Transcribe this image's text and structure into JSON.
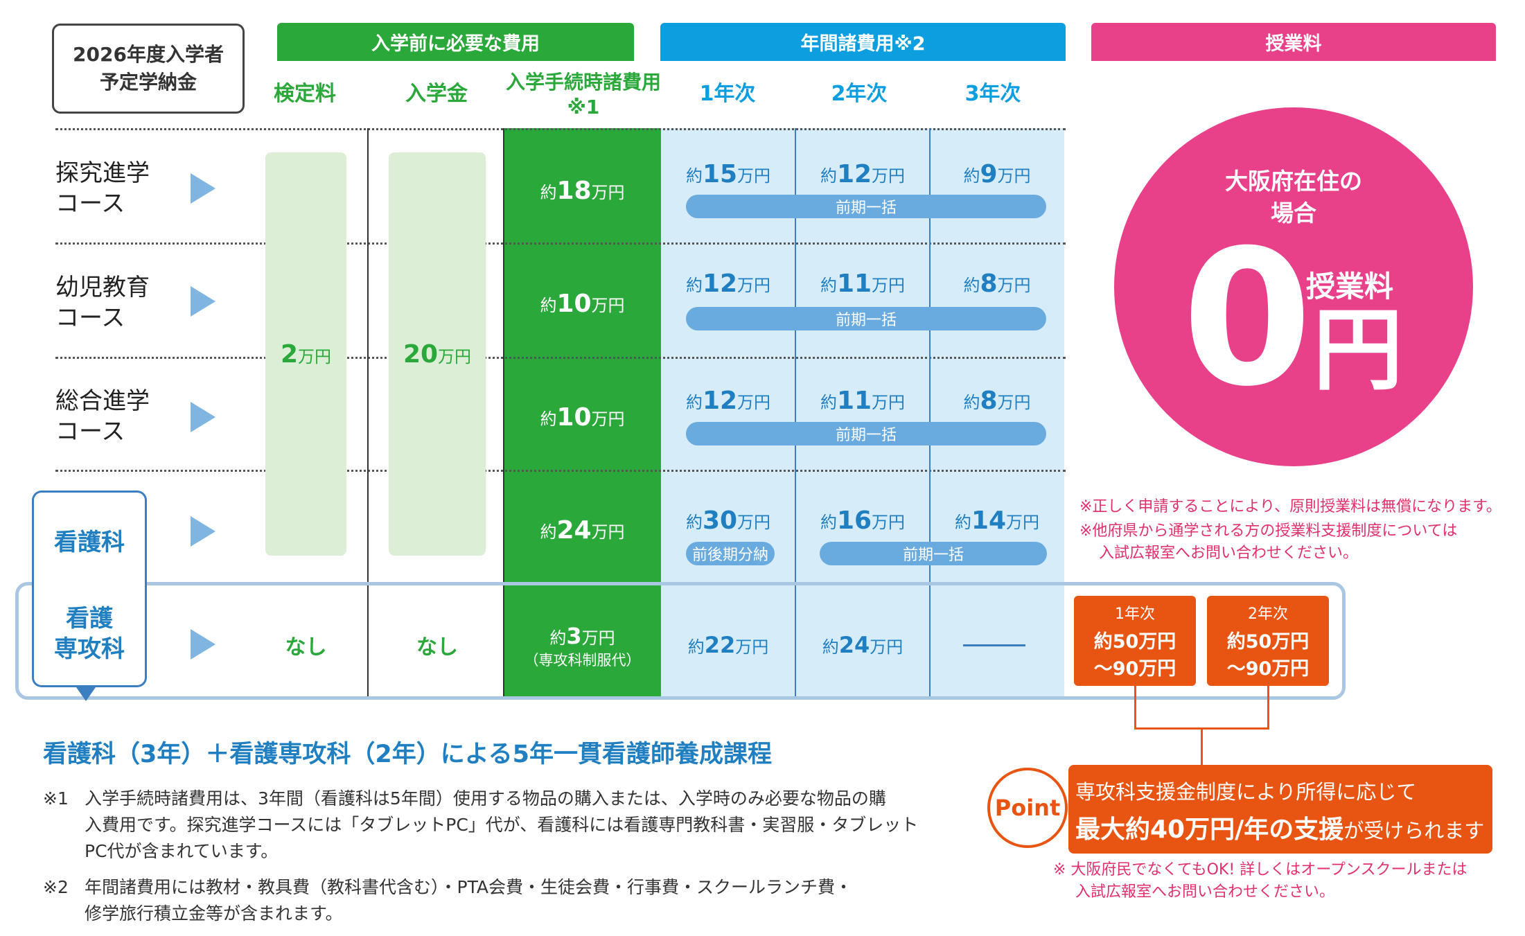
{
  "title_box": {
    "line1": "2026年度入学者",
    "line2": "予定学納金"
  },
  "headers": {
    "pre_entry": "入学前に必要な費用",
    "annual": "年間諸費用※2",
    "tuition": "授業料",
    "exam_fee": "検定料",
    "admission_fee": "入学金",
    "procedure_fee_1": "入学手続時諸費用",
    "procedure_fee_2": "※1",
    "year1": "1年次",
    "year2": "2年次",
    "year3": "3年次"
  },
  "approx": "約",
  "unit": "万円",
  "exam_fee_value": "2",
  "admission_fee_value": "20",
  "none_label": "なし",
  "dash": "——",
  "courses": [
    {
      "line1": "探究進学",
      "line2": "コース",
      "procedure": "18",
      "y1": "15",
      "y2": "12",
      "y3": "9",
      "pill": "前期一括"
    },
    {
      "line1": "幼児教育",
      "line2": "コース",
      "procedure": "10",
      "y1": "12",
      "y2": "11",
      "y3": "8",
      "pill": "前期一括"
    },
    {
      "line1": "総合進学",
      "line2": "コース",
      "procedure": "10",
      "y1": "12",
      "y2": "11",
      "y3": "8",
      "pill": "前期一括"
    },
    {
      "line1": "看護科",
      "procedure": "24",
      "y1": "30",
      "y2": "16",
      "y3": "14",
      "pill_y1": "前後期分納",
      "pill": "前期一括"
    }
  ],
  "senkou": {
    "line1": "看護",
    "line2": "専攻科",
    "procedure": "3",
    "procedure_note": "（専攻科制服代）",
    "y1": "22",
    "y2": "24"
  },
  "circle": {
    "line1": "大阪府在住の",
    "line2": "場合",
    "zero": "0",
    "label": "授業料",
    "yen": "円"
  },
  "tuition_notes": [
    "※正しく申請することにより、原則授業料は無償になります。",
    "※他府県から通学される方の授業料支援制度については",
    "入試広報室へお問い合わせください。"
  ],
  "senkou_tuition": [
    {
      "year": "1年次",
      "line1": "約50万円",
      "line2": "〜90万円"
    },
    {
      "year": "2年次",
      "line1": "約50万円",
      "line2": "〜90万円"
    }
  ],
  "point": {
    "badge": "Point",
    "line1": "専攻科支援金制度により所得に応じて",
    "line2_bold": "最大約40万円/年の支援",
    "line2_rest": "が受けられます",
    "note1": "※ 大阪府民でなくてもOK! 詳しくはオープンスクールまたは",
    "note2": "入試広報室へお問い合わせください。"
  },
  "program_title": "看護科（3年）＋看護専攻科（2年）による5年一貫看護師養成課程",
  "footnotes": {
    "n1_label": "※1",
    "n1_lines": [
      "入学手続時諸費用は、3年間（看護科は5年間）使用する物品の購入または、入学時のみ必要な物品の購",
      "入費用です。探究進学コースには「タブレットPC」代が、看護科には看護専門教科書・実習服・タブレット",
      "PC代が含まれています。"
    ],
    "n2_label": "※2",
    "n2_lines": [
      "年間諸費用には教材・教具費（教科書代含む）・PTA会費・生徒会費・行事費・スクールランチ費・",
      "修学旅行積立金等が含まれます。"
    ]
  },
  "colors": {
    "green": "#2aa83a",
    "blue": "#0d9ee0",
    "pink": "#e8418a",
    "orange": "#e85512",
    "light_blue": "#d7ecf9",
    "light_green": "#dcefd6"
  }
}
